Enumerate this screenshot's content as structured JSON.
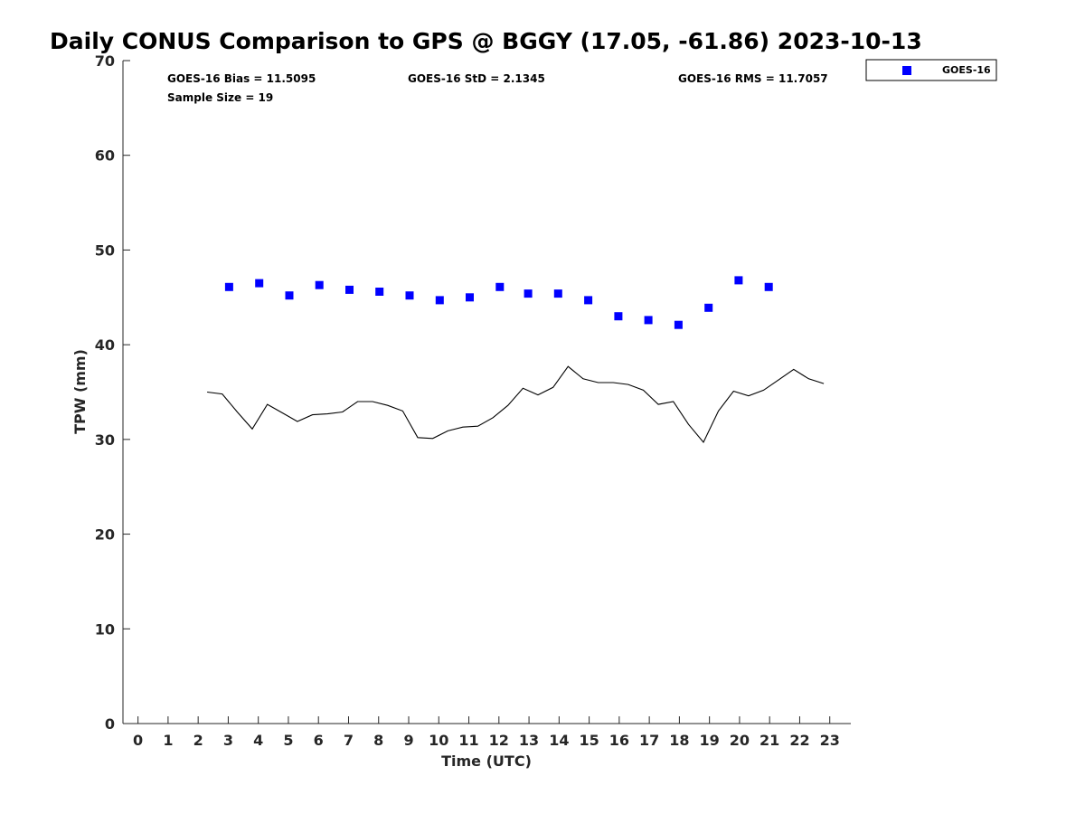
{
  "chart_data": {
    "type": "scatter",
    "title": "Daily CONUS Comparison to GPS @ BGGY (17.05, -61.86) 2023-10-13",
    "xlabel": "Time (UTC)",
    "ylabel": "TPW (mm)",
    "xlim": [
      -0.5,
      23.7
    ],
    "ylim": [
      0,
      70
    ],
    "x_ticks": [
      0,
      1,
      2,
      3,
      4,
      5,
      6,
      7,
      8,
      9,
      10,
      11,
      12,
      13,
      14,
      15,
      16,
      17,
      18,
      19,
      20,
      21,
      22,
      23
    ],
    "y_ticks": [
      0,
      10,
      20,
      30,
      40,
      50,
      60,
      70
    ],
    "grid": false,
    "legend_position": "outside-top-right",
    "series": [
      {
        "name": "GOES-16",
        "kind": "marker",
        "marker": "square",
        "color": "#0000ff",
        "x": [
          3.03,
          4.03,
          5.03,
          6.03,
          7.03,
          8.03,
          9.03,
          10.03,
          11.03,
          12.03,
          12.97,
          13.97,
          14.97,
          15.97,
          16.97,
          17.97,
          18.97,
          19.97,
          20.97
        ],
        "y": [
          46.1,
          46.5,
          45.2,
          46.3,
          45.8,
          45.6,
          45.2,
          44.7,
          45.0,
          46.1,
          45.4,
          45.4,
          44.7,
          43.0,
          42.6,
          42.1,
          43.9,
          46.8,
          46.1
        ]
      },
      {
        "kind": "line",
        "color": "#000000",
        "x": [
          2.3,
          2.8,
          3.3,
          3.8,
          4.3,
          4.8,
          5.3,
          5.8,
          6.3,
          6.8,
          7.3,
          7.8,
          8.3,
          8.8,
          9.3,
          9.8,
          10.3,
          10.8,
          11.3,
          11.8,
          12.3,
          12.8,
          13.3,
          13.8,
          14.3,
          14.8,
          15.3,
          15.8,
          16.3,
          16.8,
          17.3,
          17.8,
          18.3,
          18.8,
          19.3,
          19.8,
          20.3,
          20.8,
          21.3,
          21.8,
          22.3,
          22.8
        ],
        "y": [
          35.0,
          34.8,
          32.9,
          31.1,
          33.7,
          32.8,
          31.9,
          32.6,
          32.7,
          32.9,
          34.0,
          34.0,
          33.6,
          33.0,
          30.2,
          30.1,
          30.9,
          31.3,
          31.4,
          32.3,
          33.6,
          35.4,
          34.7,
          35.5,
          37.7,
          36.4,
          36.0,
          36.0,
          35.8,
          35.2,
          33.7,
          34.0,
          31.6,
          29.7,
          33.0,
          35.1,
          34.6,
          35.2,
          36.3,
          37.4,
          36.4,
          35.9
        ]
      }
    ],
    "annotations": [
      "GOES-16 Bias = 11.5095",
      "GOES-16 StD = 2.1345",
      "GOES-16 RMS = 11.7057",
      "Sample Size = 19"
    ]
  }
}
